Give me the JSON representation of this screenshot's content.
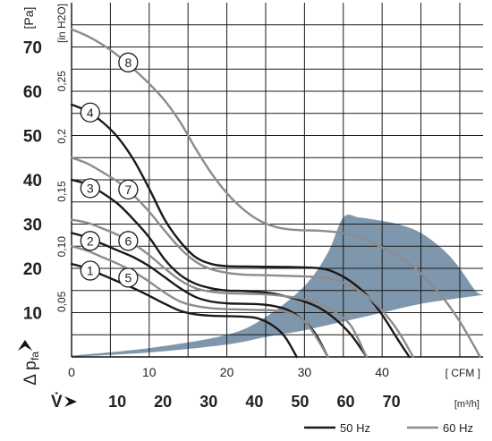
{
  "chart_data": {
    "type": "line",
    "y_axis_left": {
      "unit": "[Pa]",
      "ticks": [
        "10",
        "20",
        "30",
        "40",
        "50",
        "60",
        "70"
      ],
      "range": [
        0,
        80
      ]
    },
    "y_axis_inner": {
      "unit": "[in H2O]",
      "ticks": [
        "0,05",
        "0,10",
        "0,15",
        "0,2",
        "0,25"
      ]
    },
    "y_symbol": "Δ p",
    "y_symbol_sub": "fa",
    "x_axis_cfm": {
      "unit": "[ CFM ]",
      "ticks": [
        "0",
        "10",
        "20",
        "30",
        "40"
      ],
      "range": [
        0,
        53
      ]
    },
    "x_axis_m3h": {
      "symbol": "V̇",
      "unit": "[m³/h]",
      "ticks": [
        "10",
        "20",
        "30",
        "40",
        "50",
        "60",
        "70"
      ]
    },
    "legend": [
      {
        "label": "50 Hz",
        "color": "#1a1a1a"
      },
      {
        "label": "60 Hz",
        "color": "#8c8c8c"
      }
    ],
    "colors": {
      "hz50": "#1a1a1a",
      "hz60": "#8c8c8c",
      "region": "#7f97ad",
      "grid": "#1a1a1a"
    },
    "operating_region": {
      "upper": [
        [
          0,
          0.3
        ],
        [
          10,
          2
        ],
        [
          20,
          5
        ],
        [
          25,
          9
        ],
        [
          30,
          16
        ],
        [
          33,
          23.5
        ],
        [
          35,
          31.5
        ],
        [
          37,
          31.5
        ],
        [
          39,
          31
        ],
        [
          42,
          30
        ],
        [
          45,
          28
        ],
        [
          48,
          24
        ],
        [
          50,
          20
        ],
        [
          52,
          15
        ],
        [
          53,
          14
        ]
      ],
      "lower": [
        [
          53,
          14
        ],
        [
          50,
          13.3
        ],
        [
          45,
          12
        ],
        [
          40,
          10
        ],
        [
          35,
          8
        ],
        [
          30,
          6
        ],
        [
          25,
          4.5
        ],
        [
          20,
          2.8
        ],
        [
          10,
          1
        ],
        [
          0,
          0
        ]
      ]
    },
    "curves": [
      {
        "id": "1",
        "freq": "50 Hz",
        "label_at": [
          2.4,
          19.5
        ],
        "points": [
          [
            0,
            21
          ],
          [
            2,
            20
          ],
          [
            4,
            18.5
          ],
          [
            6,
            17
          ],
          [
            8,
            15.5
          ],
          [
            10,
            13.8
          ],
          [
            12,
            12
          ],
          [
            14,
            10.4
          ],
          [
            16,
            9.6
          ],
          [
            18,
            9.3
          ],
          [
            20,
            9.2
          ],
          [
            22,
            9.1
          ],
          [
            24,
            8.7
          ],
          [
            26,
            7
          ],
          [
            27.5,
            4.5
          ],
          [
            29,
            0
          ]
        ]
      },
      {
        "id": "2",
        "freq": "50 Hz",
        "label_at": [
          2.4,
          26.2
        ],
        "points": [
          [
            0,
            28
          ],
          [
            2,
            27
          ],
          [
            4,
            25.5
          ],
          [
            6,
            24
          ],
          [
            8,
            22.5
          ],
          [
            10,
            20.5
          ],
          [
            12,
            18
          ],
          [
            14,
            15.5
          ],
          [
            16,
            13.5
          ],
          [
            18,
            12.5
          ],
          [
            20,
            12.1
          ],
          [
            22,
            12
          ],
          [
            24,
            11.9
          ],
          [
            26,
            11.5
          ],
          [
            28,
            10.5
          ],
          [
            30,
            8
          ],
          [
            31.5,
            5
          ],
          [
            33,
            0
          ]
        ]
      },
      {
        "id": "3",
        "freq": "50 Hz",
        "label_at": [
          2.4,
          38.1
        ],
        "points": [
          [
            0,
            40
          ],
          [
            2,
            39
          ],
          [
            4,
            37
          ],
          [
            6,
            34.5
          ],
          [
            8,
            31
          ],
          [
            10,
            27
          ],
          [
            12,
            22
          ],
          [
            14,
            18.5
          ],
          [
            16,
            16.5
          ],
          [
            18,
            15.5
          ],
          [
            20,
            15
          ],
          [
            22,
            14.9
          ],
          [
            24,
            14.7
          ],
          [
            26,
            14.3
          ],
          [
            28,
            13.5
          ],
          [
            30,
            12.5
          ],
          [
            32,
            11
          ],
          [
            34,
            8.5
          ],
          [
            36,
            5
          ],
          [
            38,
            0
          ]
        ]
      },
      {
        "id": "4",
        "freq": "50 Hz",
        "label_at": [
          2.4,
          55.2
        ],
        "points": [
          [
            0,
            57
          ],
          [
            2,
            55.5
          ],
          [
            4,
            53
          ],
          [
            6,
            49.5
          ],
          [
            8,
            44.5
          ],
          [
            10,
            38
          ],
          [
            12,
            31
          ],
          [
            14,
            26
          ],
          [
            16,
            22.5
          ],
          [
            18,
            21
          ],
          [
            20,
            20.5
          ],
          [
            24,
            20.4
          ],
          [
            28,
            20.3
          ],
          [
            32,
            20
          ],
          [
            34,
            19
          ],
          [
            36,
            17
          ],
          [
            38,
            14
          ],
          [
            40,
            9.5
          ],
          [
            42,
            4
          ],
          [
            43.5,
            0
          ]
        ]
      },
      {
        "id": "5",
        "freq": "60 Hz",
        "label_at": [
          7.3,
          17.9
        ],
        "points": [
          [
            0,
            25
          ],
          [
            2,
            24
          ],
          [
            4,
            22.5
          ],
          [
            6,
            21
          ],
          [
            8,
            19.2
          ],
          [
            10,
            17
          ],
          [
            12,
            14.5
          ],
          [
            14,
            12.5
          ],
          [
            16,
            11.5
          ],
          [
            18,
            11
          ],
          [
            20,
            10.8
          ],
          [
            22,
            10.7
          ],
          [
            24,
            10.6
          ],
          [
            26,
            10.5
          ],
          [
            28,
            10
          ],
          [
            30,
            8
          ],
          [
            31.5,
            4.5
          ],
          [
            33,
            0
          ]
        ]
      },
      {
        "id": "6",
        "freq": "60 Hz",
        "label_at": [
          7.3,
          26.2
        ],
        "points": [
          [
            0,
            31
          ],
          [
            2,
            30.3
          ],
          [
            4,
            29
          ],
          [
            6,
            27.5
          ],
          [
            8,
            25.5
          ],
          [
            10,
            23
          ],
          [
            12,
            20
          ],
          [
            14,
            17.3
          ],
          [
            16,
            15.5
          ],
          [
            18,
            14.7
          ],
          [
            20,
            14.4
          ],
          [
            22,
            14.3
          ],
          [
            24,
            14.2
          ],
          [
            26,
            14
          ],
          [
            28,
            13.6
          ],
          [
            30,
            13
          ],
          [
            32,
            12
          ],
          [
            34,
            10
          ],
          [
            36,
            7
          ],
          [
            38,
            0
          ]
        ]
      },
      {
        "id": "7",
        "freq": "60 Hz",
        "label_at": [
          7.3,
          37.8
        ],
        "points": [
          [
            0,
            45
          ],
          [
            2,
            43.7
          ],
          [
            4,
            41.7
          ],
          [
            6,
            39.5
          ],
          [
            8,
            36.5
          ],
          [
            10,
            32.8
          ],
          [
            12,
            28.5
          ],
          [
            14,
            24.5
          ],
          [
            16,
            21.5
          ],
          [
            18,
            19.8
          ],
          [
            20,
            19
          ],
          [
            22,
            18.6
          ],
          [
            24,
            18.5
          ],
          [
            28,
            18.3
          ],
          [
            32,
            18
          ],
          [
            34,
            17.4
          ],
          [
            36,
            16
          ],
          [
            38,
            13.8
          ],
          [
            40,
            10.5
          ],
          [
            42,
            6
          ],
          [
            44,
            0
          ]
        ]
      },
      {
        "id": "8",
        "freq": "60 Hz",
        "label_at": [
          7.3,
          66.5
        ],
        "points": [
          [
            0,
            74
          ],
          [
            2,
            72.5
          ],
          [
            4,
            70.5
          ],
          [
            6,
            68
          ],
          [
            8,
            65
          ],
          [
            10,
            61.7
          ],
          [
            12,
            57.9
          ],
          [
            14,
            53
          ],
          [
            16,
            47
          ],
          [
            18,
            41.5
          ],
          [
            20,
            37
          ],
          [
            22,
            33.5
          ],
          [
            24,
            31
          ],
          [
            26,
            29.5
          ],
          [
            28,
            28.8
          ],
          [
            30,
            28.6
          ],
          [
            32,
            28.5
          ],
          [
            34,
            28.2
          ],
          [
            36,
            27.5
          ],
          [
            38,
            26.3
          ],
          [
            40,
            24.7
          ],
          [
            42,
            22.8
          ],
          [
            44,
            20.5
          ],
          [
            46,
            17
          ],
          [
            48,
            13
          ],
          [
            50,
            8
          ],
          [
            52,
            2
          ],
          [
            52.6,
            0
          ]
        ]
      }
    ]
  }
}
